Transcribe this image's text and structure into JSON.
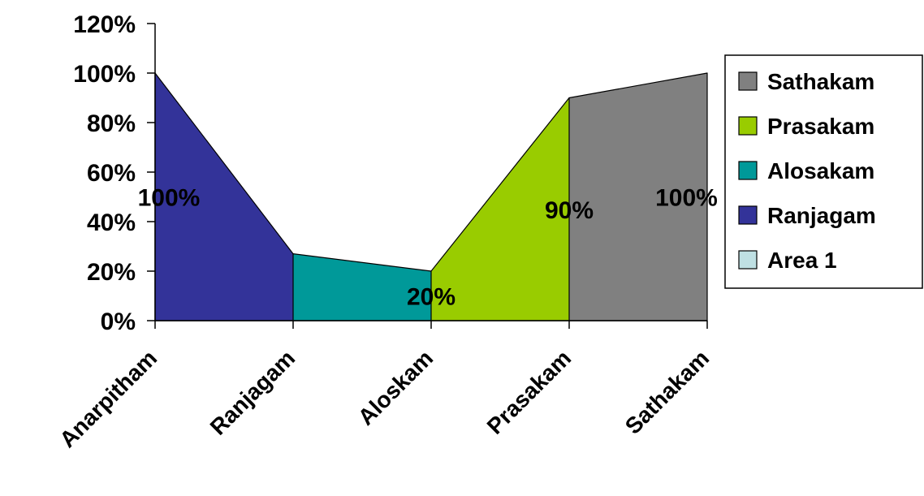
{
  "chart_data": {
    "type": "area",
    "title": "",
    "xlabel": "",
    "ylabel": "",
    "categories": [
      "Anarpitham",
      "Ranjagam",
      "Aloskam",
      "Prasakam",
      "Sathakam"
    ],
    "ylim": [
      0,
      1.2
    ],
    "y_ticks": [
      "0%",
      "20%",
      "40%",
      "60%",
      "80%",
      "100%",
      "120%"
    ],
    "grid": false,
    "legend_position": "right",
    "series": [
      {
        "name": "Area 1",
        "color": "#BFE0E3",
        "points": [
          [
            0,
            1.0
          ],
          [
            1,
            0.0
          ]
        ]
      },
      {
        "name": "Ranjagam",
        "color": "#333399",
        "points": [
          [
            0,
            1.0
          ],
          [
            1,
            0.27
          ],
          [
            2,
            0.0
          ]
        ]
      },
      {
        "name": "Alosakam",
        "color": "#009999",
        "points": [
          [
            1,
            0.27
          ],
          [
            2,
            0.2
          ],
          [
            3,
            0.0
          ]
        ]
      },
      {
        "name": "Prasakam",
        "color": "#99CC00",
        "points": [
          [
            2,
            0.2
          ],
          [
            3,
            0.9
          ],
          [
            4,
            0.0
          ]
        ]
      },
      {
        "name": "Sathakam",
        "color": "#808080",
        "points": [
          [
            3,
            0.9
          ],
          [
            4,
            1.0
          ],
          [
            4,
            0.0
          ]
        ]
      }
    ],
    "legend_order": [
      "Sathakam",
      "Prasakam",
      "Alosakam",
      "Ranjagam",
      "Area 1"
    ],
    "data_labels": [
      {
        "text": "100%",
        "x": 0.1,
        "y": 0.5
      },
      {
        "text": "20%",
        "x": 2.0,
        "y": 0.1
      },
      {
        "text": "90%",
        "x": 3.0,
        "y": 0.45
      },
      {
        "text": "100%",
        "x": 3.85,
        "y": 0.5
      }
    ]
  }
}
